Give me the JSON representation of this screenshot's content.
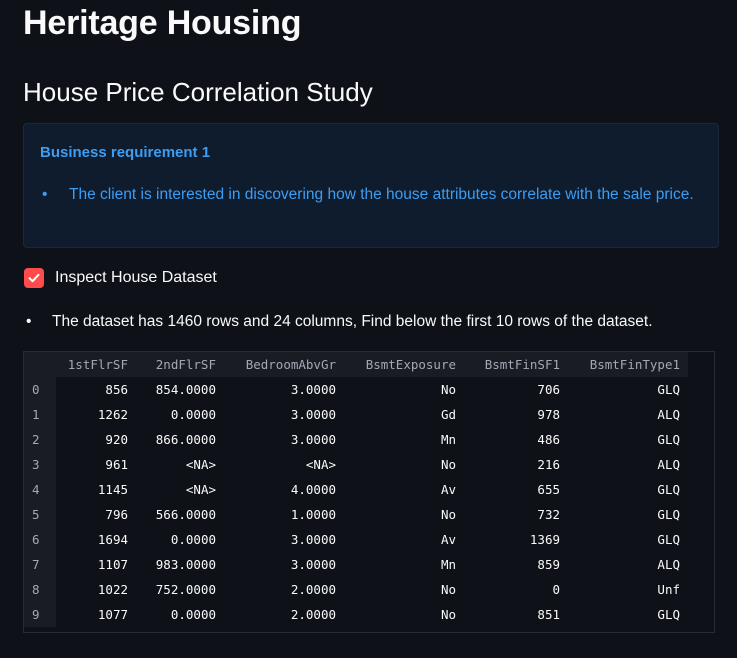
{
  "app": {
    "title": "Heritage Housing"
  },
  "page": {
    "title": "House Price Correlation Study"
  },
  "info_box": {
    "heading": "Business requirement 1",
    "items": [
      "The client is interested in discovering how the house attributes correlate with the sale price."
    ],
    "color": "#3d9df3"
  },
  "checkbox": {
    "label": "Inspect House Dataset",
    "checked": true,
    "color": "#ff4b4b",
    "icon": "checkmark-icon"
  },
  "description": {
    "items": [
      "The dataset has 1460 rows and 24 columns, Find below the first 10 rows of the dataset."
    ]
  },
  "table": {
    "columns": [
      "1stFlrSF",
      "2ndFlrSF",
      "BedroomAbvGr",
      "BsmtExposure",
      "BsmtFinSF1",
      "BsmtFinType1"
    ],
    "rows": [
      {
        "index": "0",
        "cells": [
          "856",
          "854.0000",
          "3.0000",
          "No",
          "706",
          "GLQ"
        ]
      },
      {
        "index": "1",
        "cells": [
          "1262",
          "0.0000",
          "3.0000",
          "Gd",
          "978",
          "ALQ"
        ]
      },
      {
        "index": "2",
        "cells": [
          "920",
          "866.0000",
          "3.0000",
          "Mn",
          "486",
          "GLQ"
        ]
      },
      {
        "index": "3",
        "cells": [
          "961",
          "<NA>",
          "<NA>",
          "No",
          "216",
          "ALQ"
        ]
      },
      {
        "index": "4",
        "cells": [
          "1145",
          "<NA>",
          "4.0000",
          "Av",
          "655",
          "GLQ"
        ]
      },
      {
        "index": "5",
        "cells": [
          "796",
          "566.0000",
          "1.0000",
          "No",
          "732",
          "GLQ"
        ]
      },
      {
        "index": "6",
        "cells": [
          "1694",
          "0.0000",
          "3.0000",
          "Av",
          "1369",
          "GLQ"
        ]
      },
      {
        "index": "7",
        "cells": [
          "1107",
          "983.0000",
          "3.0000",
          "Mn",
          "859",
          "ALQ"
        ]
      },
      {
        "index": "8",
        "cells": [
          "1022",
          "752.0000",
          "2.0000",
          "No",
          "0",
          "Unf"
        ]
      },
      {
        "index": "9",
        "cells": [
          "1077",
          "0.0000",
          "2.0000",
          "No",
          "851",
          "GLQ"
        ]
      }
    ]
  }
}
